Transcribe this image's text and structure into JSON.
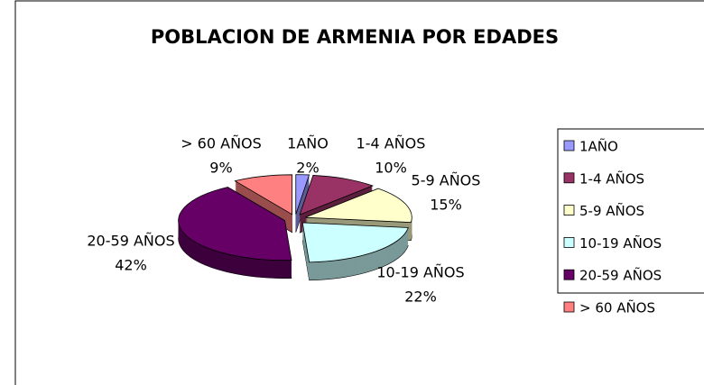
{
  "chart_data": {
    "type": "pie",
    "title": "POBLACION DE ARMENIA POR EDADES",
    "categories": [
      "1AÑO",
      "1-4 AÑOS",
      "5-9 AÑOS",
      "10-19 AÑOS",
      "20-59 AÑOS",
      "> 60 AÑOS"
    ],
    "values": [
      2,
      10,
      15,
      22,
      42,
      9
    ],
    "value_labels": [
      "2%",
      "10%",
      "15%",
      "22%",
      "42%",
      "9%"
    ],
    "colors": [
      "#9999ff",
      "#993366",
      "#ffffcc",
      "#ccffff",
      "#660066",
      "#ff8080"
    ],
    "legend": "right"
  }
}
